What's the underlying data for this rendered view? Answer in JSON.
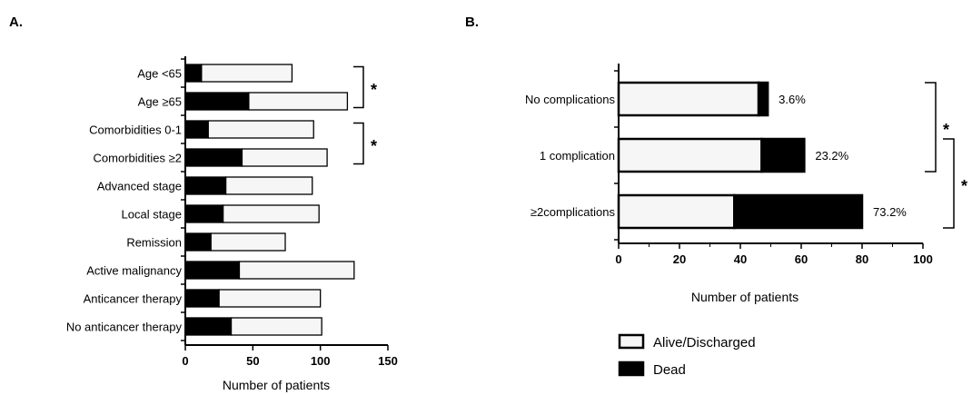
{
  "chart_data": [
    {
      "panel": "A.",
      "type": "bar",
      "orientation": "horizontal",
      "stacked": true,
      "categories": [
        "Age <65",
        "Age ≥65",
        "Comorbidities 0-1",
        "Comorbidities ≥2",
        "Advanced stage",
        "Local stage",
        "Remission",
        "Active malignancy",
        "Anticancer therapy",
        "No anticancer therapy"
      ],
      "series": [
        {
          "name": "Dead",
          "color": "#000000",
          "values": [
            12,
            47,
            17,
            42,
            30,
            28,
            19,
            40,
            25,
            34
          ]
        },
        {
          "name": "Alive/Discharged",
          "color": "#f6f6f6",
          "values": [
            67,
            73,
            78,
            63,
            64,
            71,
            55,
            85,
            75,
            67
          ]
        }
      ],
      "xlabel": "Number of patients",
      "xlim": [
        0,
        150
      ],
      "xticks": [
        "0",
        "50",
        "100",
        "150"
      ],
      "significance": [
        {
          "categories": [
            0,
            1
          ],
          "label": "*"
        },
        {
          "categories": [
            2,
            3
          ],
          "label": "*"
        }
      ]
    },
    {
      "panel": "B.",
      "type": "bar",
      "orientation": "horizontal",
      "stacked": true,
      "categories": [
        "No complications",
        "1 complication",
        "≥2complications"
      ],
      "series": [
        {
          "name": "Alive/Discharged",
          "color": "#f6f6f6",
          "values": [
            46,
            47,
            38
          ]
        },
        {
          "name": "Dead",
          "color": "#000000",
          "values": [
            3,
            14,
            42
          ]
        }
      ],
      "data_labels": [
        "3.6%",
        "23.2%",
        "73.2%"
      ],
      "xlabel": "Number of patients",
      "xlim": [
        0,
        100
      ],
      "xticks": [
        "0",
        "20",
        "40",
        "60",
        "80",
        "100"
      ],
      "significance": [
        {
          "categories": [
            0,
            1
          ],
          "label": "*"
        },
        {
          "categories": [
            1,
            2
          ],
          "label": "*"
        }
      ]
    }
  ],
  "legend": {
    "placement": "bottom-right",
    "items": [
      {
        "label": "Alive/Discharged",
        "color": "#f6f6f6"
      },
      {
        "label": "Dead",
        "color": "#000000"
      }
    ]
  }
}
